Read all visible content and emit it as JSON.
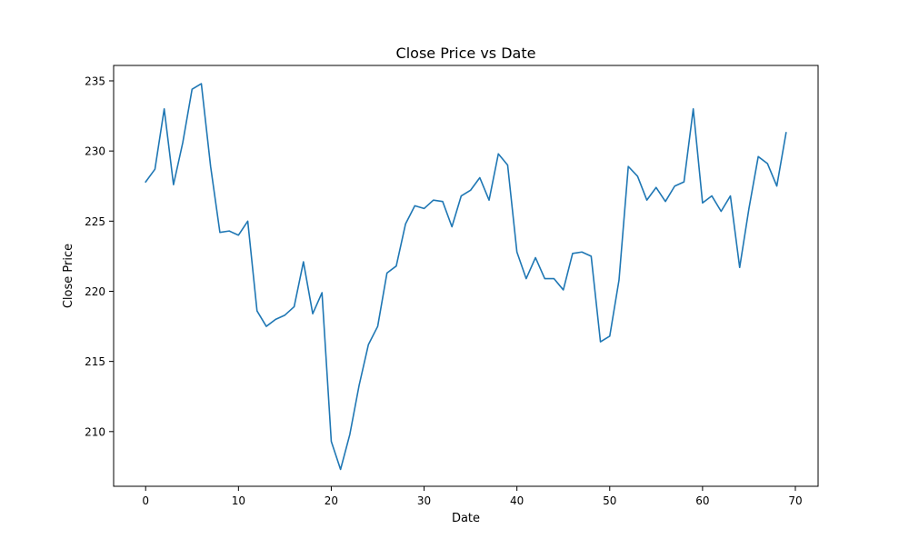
{
  "chart_data": {
    "type": "line",
    "title": "Close Price vs Date",
    "xlabel": "Date",
    "ylabel": "Close Price",
    "xlim": [
      -3.45,
      72.45
    ],
    "ylim": [
      206.1,
      236.1
    ],
    "xticks": [
      0,
      10,
      20,
      30,
      40,
      50,
      60,
      70
    ],
    "yticks": [
      210,
      215,
      220,
      225,
      230,
      235
    ],
    "grid": false,
    "line_color": "#1f77b4",
    "series": [
      {
        "x": [
          0,
          1,
          2,
          3,
          4,
          5,
          6,
          7,
          8,
          9,
          10,
          11,
          12,
          13,
          14,
          15,
          16,
          17,
          18,
          19,
          20,
          21,
          22,
          23,
          24,
          25,
          26,
          27,
          28,
          29,
          30,
          31,
          32,
          33,
          34,
          35,
          36,
          37,
          38,
          39,
          40,
          41,
          42,
          43,
          44,
          45,
          46,
          47,
          48,
          49,
          50,
          51,
          52,
          53,
          54,
          55,
          56,
          57,
          58,
          59,
          60,
          61,
          62,
          63,
          64,
          65,
          66,
          67,
          68,
          69
        ],
        "values": [
          227.8,
          228.7,
          233.0,
          227.6,
          230.6,
          234.4,
          234.8,
          228.9,
          224.2,
          224.3,
          224.0,
          225.0,
          218.6,
          217.5,
          218.0,
          218.3,
          218.9,
          222.1,
          218.4,
          219.9,
          209.3,
          207.3,
          209.8,
          213.3,
          216.2,
          217.5,
          221.3,
          221.8,
          224.8,
          226.1,
          225.9,
          226.5,
          226.4,
          224.6,
          226.8,
          227.2,
          228.1,
          226.5,
          229.8,
          229.0,
          222.8,
          220.9,
          222.4,
          220.9,
          220.9,
          220.1,
          222.7,
          222.8,
          222.5,
          216.4,
          216.8,
          220.8,
          228.9,
          228.2,
          226.5,
          227.4,
          226.4,
          227.5,
          227.8,
          233.0,
          226.3,
          226.8,
          225.7,
          226.8,
          221.7,
          225.9,
          229.6,
          229.1,
          227.5,
          231.3
        ]
      }
    ]
  }
}
